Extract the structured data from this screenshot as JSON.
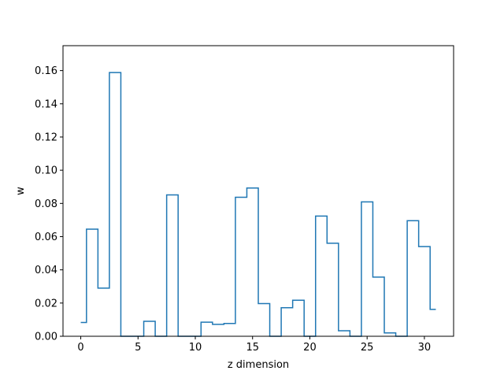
{
  "chart_data": {
    "type": "line",
    "drawstyle": "steps-mid",
    "xlabel": "z dimension",
    "ylabel": "w",
    "xlim": [
      -1.55,
      32.55
    ],
    "ylim": [
      0,
      0.175
    ],
    "grid": false,
    "x_ticks": [
      0,
      5,
      10,
      15,
      20,
      25,
      30
    ],
    "x_tick_labels": [
      "0",
      "5",
      "10",
      "15",
      "20",
      "25",
      "30"
    ],
    "y_ticks": [
      0,
      0.02,
      0.04,
      0.06,
      0.08,
      0.1,
      0.12,
      0.14,
      0.16
    ],
    "y_tick_labels": [
      "0.00",
      "0.02",
      "0.04",
      "0.06",
      "0.08",
      "0.10",
      "0.12",
      "0.14",
      "0.16"
    ],
    "line_color": "#1f77b4",
    "x": [
      0,
      1,
      2,
      3,
      4,
      5,
      6,
      7,
      8,
      9,
      10,
      11,
      12,
      13,
      14,
      15,
      16,
      17,
      18,
      19,
      20,
      21,
      22,
      23,
      24,
      25,
      26,
      27,
      28,
      29,
      30,
      31
    ],
    "values": [
      0.0083,
      0.0645,
      0.029,
      0.1588,
      0.0,
      0.0,
      0.009,
      0.0,
      0.0851,
      0.0,
      0.0,
      0.0085,
      0.0072,
      0.0077,
      0.0837,
      0.0893,
      0.0197,
      0.0,
      0.0172,
      0.0217,
      0.0,
      0.0724,
      0.056,
      0.0033,
      0.0,
      0.0809,
      0.0356,
      0.002,
      0.0,
      0.0696,
      0.054,
      0.0162
    ]
  }
}
